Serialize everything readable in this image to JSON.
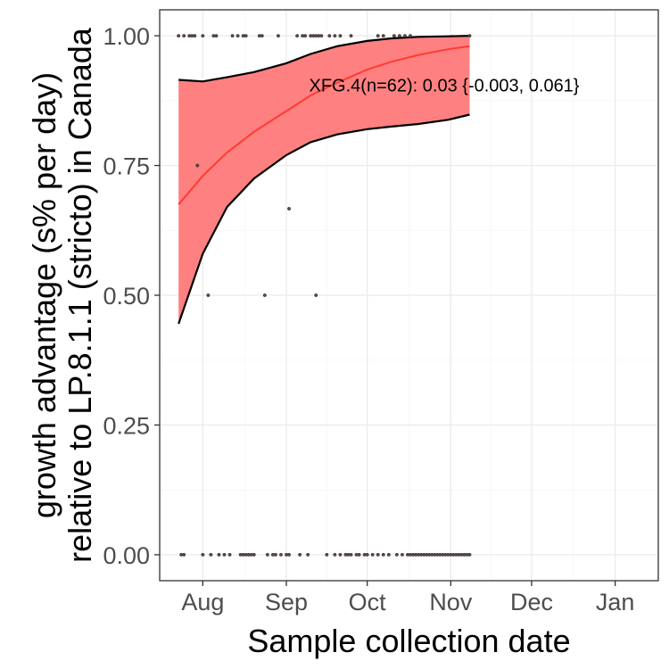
{
  "chart_data": {
    "type": "line",
    "title": "",
    "xlabel": "Sample collection date",
    "ylabel_line1": "growth advantage (s% per day)",
    "ylabel_line2": "relative to LP.8.1.1 (stricto) in Canada",
    "x_ticks": [
      {
        "date": "2025-08-01",
        "label": "Aug"
      },
      {
        "date": "2025-09-01",
        "label": "Sep"
      },
      {
        "date": "2025-10-01",
        "label": "Oct"
      },
      {
        "date": "2025-11-01",
        "label": "Nov"
      },
      {
        "date": "2025-12-01",
        "label": "Dec"
      },
      {
        "date": "2026-01-01",
        "label": "Jan"
      }
    ],
    "xlim": [
      "2025-07-16",
      "2026-01-17"
    ],
    "y_ticks": [
      0.0,
      0.25,
      0.5,
      0.75,
      1.0
    ],
    "y_tick_labels": [
      "0.00",
      "0.25",
      "0.50",
      "0.75",
      "1.00"
    ],
    "ylim": [
      -0.05,
      1.05
    ],
    "grid": true,
    "annotation": "XFG.4(n=62): 0.03 {-0.003, 0.061}",
    "colors": {
      "fit": "#ff3b30",
      "ribbon": "#ff8080",
      "band_edge": "#000000",
      "point": "#5a4a4a",
      "grid_major": "#ebebeb",
      "grid_minor": "#f5f5f5",
      "panel_border": "#333333"
    },
    "fit": {
      "x": [
        "2025-07-23",
        "2025-08-01",
        "2025-08-10",
        "2025-08-20",
        "2025-09-01",
        "2025-09-10",
        "2025-09-20",
        "2025-10-01",
        "2025-10-10",
        "2025-10-20",
        "2025-10-31",
        "2025-11-08"
      ],
      "y": [
        0.675,
        0.73,
        0.775,
        0.815,
        0.855,
        0.885,
        0.91,
        0.935,
        0.95,
        0.963,
        0.974,
        0.98
      ]
    },
    "band_upper": {
      "x": [
        "2025-07-23",
        "2025-08-01",
        "2025-08-10",
        "2025-08-20",
        "2025-09-01",
        "2025-09-10",
        "2025-09-20",
        "2025-10-01",
        "2025-10-10",
        "2025-10-20",
        "2025-10-31",
        "2025-11-08"
      ],
      "y": [
        0.915,
        0.912,
        0.92,
        0.93,
        0.947,
        0.965,
        0.98,
        0.99,
        0.995,
        0.998,
        0.999,
        1.0
      ]
    },
    "band_lower": {
      "x": [
        "2025-07-23",
        "2025-08-01",
        "2025-08-10",
        "2025-08-20",
        "2025-09-01",
        "2025-09-10",
        "2025-09-20",
        "2025-10-01",
        "2025-10-10",
        "2025-10-20",
        "2025-10-31",
        "2025-11-08"
      ],
      "y": [
        0.445,
        0.58,
        0.67,
        0.725,
        0.77,
        0.795,
        0.81,
        0.82,
        0.825,
        0.83,
        0.838,
        0.848
      ]
    },
    "points": [
      {
        "x": "2025-07-23",
        "y": 1.0
      },
      {
        "x": "2025-07-25",
        "y": 1.0
      },
      {
        "x": "2025-07-27",
        "y": 1.0
      },
      {
        "x": "2025-07-28",
        "y": 1.0
      },
      {
        "x": "2025-07-29",
        "y": 1.0
      },
      {
        "x": "2025-08-01",
        "y": 1.0
      },
      {
        "x": "2025-08-05",
        "y": 1.0
      },
      {
        "x": "2025-08-06",
        "y": 1.0
      },
      {
        "x": "2025-08-12",
        "y": 1.0
      },
      {
        "x": "2025-08-14",
        "y": 1.0
      },
      {
        "x": "2025-08-16",
        "y": 1.0
      },
      {
        "x": "2025-08-17",
        "y": 1.0
      },
      {
        "x": "2025-08-22",
        "y": 1.0
      },
      {
        "x": "2025-08-23",
        "y": 1.0
      },
      {
        "x": "2025-08-29",
        "y": 1.0
      },
      {
        "x": "2025-09-05",
        "y": 1.0
      },
      {
        "x": "2025-09-07",
        "y": 1.0
      },
      {
        "x": "2025-09-08",
        "y": 1.0
      },
      {
        "x": "2025-09-10",
        "y": 1.0
      },
      {
        "x": "2025-09-11",
        "y": 1.0
      },
      {
        "x": "2025-09-12",
        "y": 1.0
      },
      {
        "x": "2025-09-13",
        "y": 1.0
      },
      {
        "x": "2025-09-14",
        "y": 1.0
      },
      {
        "x": "2025-09-17",
        "y": 1.0
      },
      {
        "x": "2025-09-19",
        "y": 1.0
      },
      {
        "x": "2025-09-21",
        "y": 1.0
      },
      {
        "x": "2025-09-25",
        "y": 1.0
      },
      {
        "x": "2025-10-05",
        "y": 1.0
      },
      {
        "x": "2025-10-07",
        "y": 1.0
      },
      {
        "x": "2025-10-11",
        "y": 1.0
      },
      {
        "x": "2025-10-13",
        "y": 1.0
      },
      {
        "x": "2025-10-15",
        "y": 1.0
      },
      {
        "x": "2025-10-17",
        "y": 1.0
      },
      {
        "x": "2025-11-08",
        "y": 1.0
      },
      {
        "x": "2025-07-30",
        "y": 0.75
      },
      {
        "x": "2025-09-02",
        "y": 0.6667
      },
      {
        "x": "2025-08-03",
        "y": 0.5
      },
      {
        "x": "2025-08-24",
        "y": 0.5
      },
      {
        "x": "2025-09-12",
        "y": 0.5
      },
      {
        "x": "2025-07-24",
        "y": 0.0
      },
      {
        "x": "2025-07-25",
        "y": 0.0
      },
      {
        "x": "2025-08-01",
        "y": 0.0
      },
      {
        "x": "2025-08-04",
        "y": 0.0
      },
      {
        "x": "2025-08-07",
        "y": 0.0
      },
      {
        "x": "2025-08-09",
        "y": 0.0
      },
      {
        "x": "2025-08-11",
        "y": 0.0
      },
      {
        "x": "2025-08-15",
        "y": 0.0
      },
      {
        "x": "2025-08-16",
        "y": 0.0
      },
      {
        "x": "2025-08-17",
        "y": 0.0
      },
      {
        "x": "2025-08-18",
        "y": 0.0
      },
      {
        "x": "2025-08-19",
        "y": 0.0
      },
      {
        "x": "2025-08-20",
        "y": 0.0
      },
      {
        "x": "2025-08-25",
        "y": 0.0
      },
      {
        "x": "2025-08-27",
        "y": 0.0
      },
      {
        "x": "2025-08-28",
        "y": 0.0
      },
      {
        "x": "2025-08-30",
        "y": 0.0
      },
      {
        "x": "2025-09-01",
        "y": 0.0
      },
      {
        "x": "2025-09-02",
        "y": 0.0
      },
      {
        "x": "2025-09-06",
        "y": 0.0
      },
      {
        "x": "2025-09-09",
        "y": 0.0
      },
      {
        "x": "2025-09-16",
        "y": 0.0
      },
      {
        "x": "2025-09-19",
        "y": 0.0
      },
      {
        "x": "2025-09-21",
        "y": 0.0
      },
      {
        "x": "2025-09-23",
        "y": 0.0
      },
      {
        "x": "2025-09-24",
        "y": 0.0
      },
      {
        "x": "2025-09-25",
        "y": 0.0
      },
      {
        "x": "2025-09-27",
        "y": 0.0
      },
      {
        "x": "2025-09-28",
        "y": 0.0
      },
      {
        "x": "2025-09-30",
        "y": 0.0
      },
      {
        "x": "2025-10-01",
        "y": 0.0
      },
      {
        "x": "2025-10-03",
        "y": 0.0
      },
      {
        "x": "2025-10-05",
        "y": 0.0
      },
      {
        "x": "2025-10-07",
        "y": 0.0
      },
      {
        "x": "2025-10-09",
        "y": 0.0
      },
      {
        "x": "2025-10-12",
        "y": 0.0
      },
      {
        "x": "2025-10-14",
        "y": 0.0
      },
      {
        "x": "2025-10-16",
        "y": 0.0
      },
      {
        "x": "2025-10-17",
        "y": 0.0
      },
      {
        "x": "2025-10-18",
        "y": 0.0
      },
      {
        "x": "2025-10-19",
        "y": 0.0
      },
      {
        "x": "2025-10-20",
        "y": 0.0
      },
      {
        "x": "2025-10-21",
        "y": 0.0
      },
      {
        "x": "2025-10-22",
        "y": 0.0
      },
      {
        "x": "2025-10-23",
        "y": 0.0
      },
      {
        "x": "2025-10-24",
        "y": 0.0
      },
      {
        "x": "2025-10-25",
        "y": 0.0
      },
      {
        "x": "2025-10-26",
        "y": 0.0
      },
      {
        "x": "2025-10-27",
        "y": 0.0
      },
      {
        "x": "2025-10-28",
        "y": 0.0
      },
      {
        "x": "2025-10-29",
        "y": 0.0
      },
      {
        "x": "2025-10-30",
        "y": 0.0
      },
      {
        "x": "2025-10-31",
        "y": 0.0
      },
      {
        "x": "2025-11-01",
        "y": 0.0
      },
      {
        "x": "2025-11-02",
        "y": 0.0
      },
      {
        "x": "2025-11-03",
        "y": 0.0
      },
      {
        "x": "2025-11-04",
        "y": 0.0
      },
      {
        "x": "2025-11-05",
        "y": 0.0
      },
      {
        "x": "2025-11-06",
        "y": 0.0
      },
      {
        "x": "2025-11-07",
        "y": 0.0
      },
      {
        "x": "2025-11-08",
        "y": 0.0
      }
    ]
  }
}
